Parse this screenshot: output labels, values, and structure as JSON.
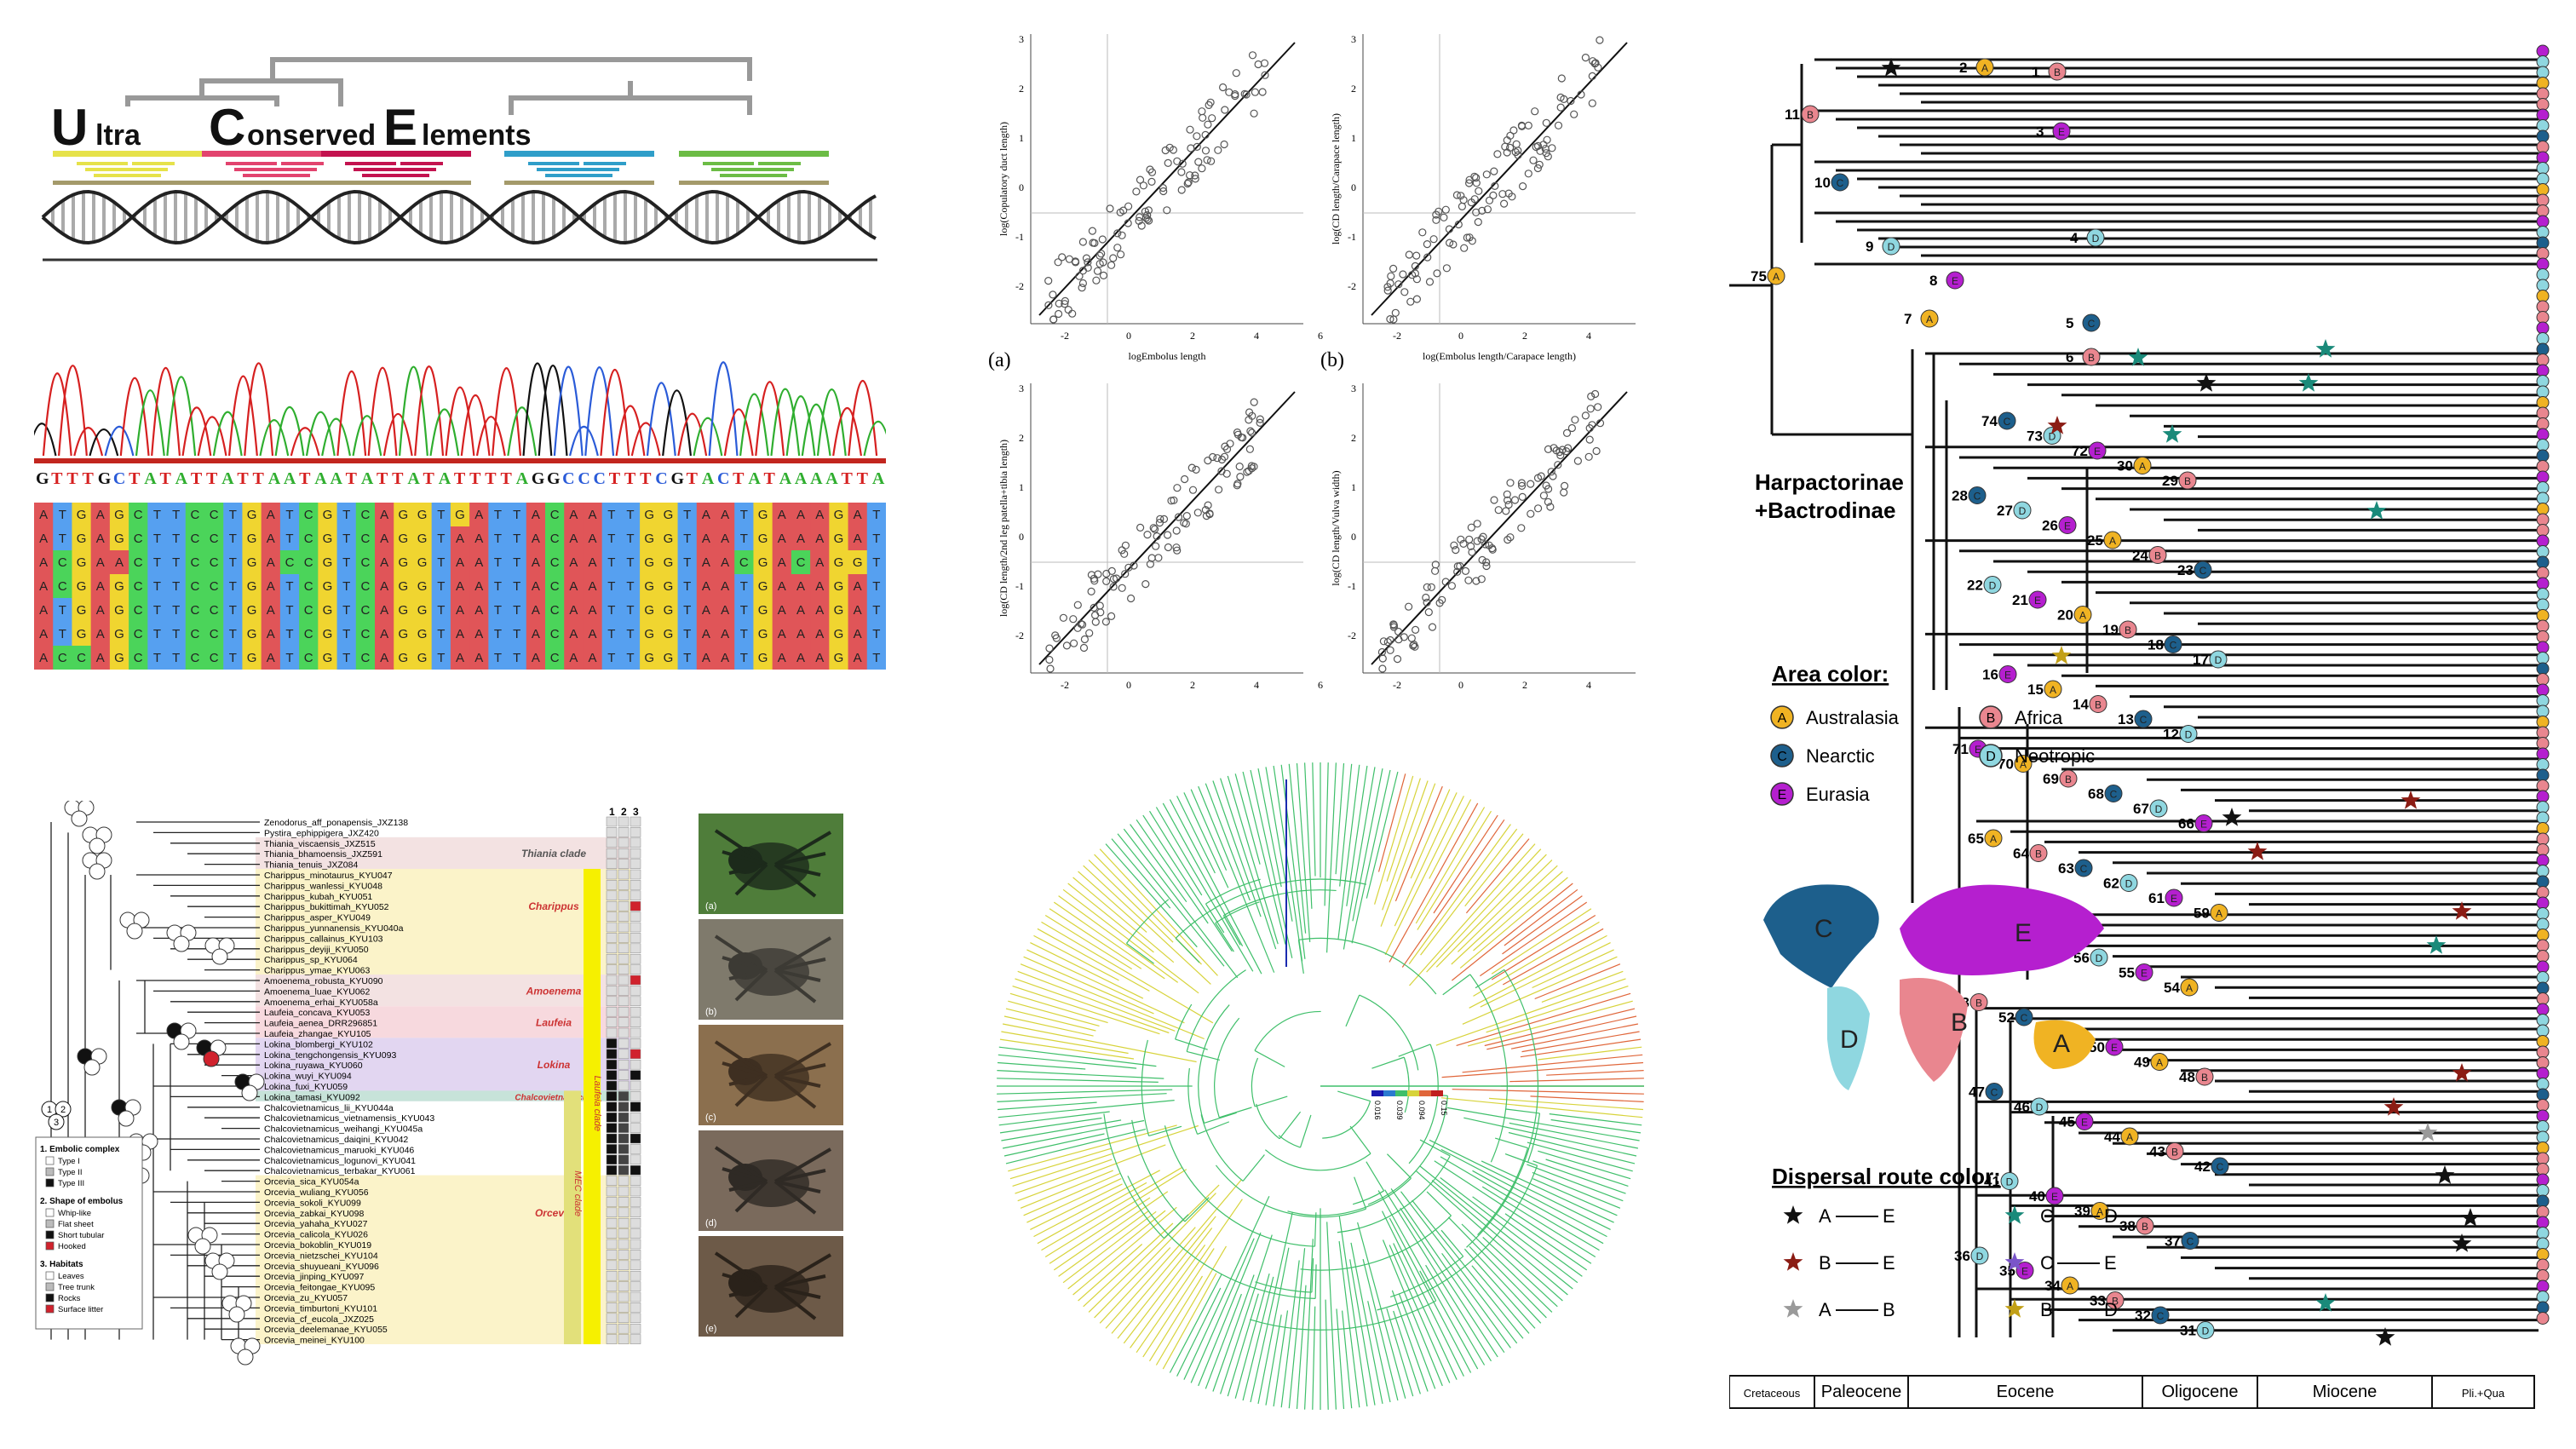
{
  "uce": {
    "big_letters": [
      "U",
      "C",
      "E"
    ],
    "small_words": [
      "ltra",
      "onserved",
      "lements"
    ],
    "colors": [
      "#e6e24a",
      "#e2436e",
      "#c3134f",
      "#2f9ec9",
      "#6cbc45"
    ]
  },
  "chromatogram": {
    "reference": "GTTTGCTATATTATTAATAATATTATATTTTAGGCCCTTTCGTACTATAAAATTA",
    "alignment": [
      "ATGAGCTTCCTGATCGTCAGGTGATTACAATTGGTAATGAAAGAT",
      "ATGAGCTTCCTGATCGTCAGGTAATTACAATTGGTAATGAAAGAT",
      "ACGAACTTCCTGACCGTCAGGTAATTACAATTGGTAACGACAGGT",
      "ACGAGCTTCCTGATCGTCAGGTAATTACAATTGGTAATGAAAGAT",
      "ATGAGCTTCCTGATCGTCAGGTAATTACAATTGGTAATGAAAGAT",
      "ATGAGCTTCCTGATCGTCAGGTAATTACAATTGGTAATGAAAGAT",
      "ACCAGCTTCCTGATCGTCAGGTAATTACAATTGGTAATGAAAGAT"
    ],
    "base_colors": {
      "A": "#e05558",
      "T": "#56a0f0",
      "G": "#f0d530",
      "C": "#4bd45a"
    }
  },
  "scatter": {
    "plots": [
      {
        "letter": "(a)",
        "xlabel": "logEmbolus length",
        "ylabel": "log(Copulatory duct length)"
      },
      {
        "letter": "(b)",
        "xlabel": "log(Embolus length/Carapace length)",
        "ylabel": "log(CD length/Carapace length)"
      },
      {
        "letter": "(c)",
        "xlabel": "log(Embolus length/2nd leg patella+tibia length)",
        "ylabel": "log(CD length/2nd leg patella+tibia length)"
      },
      {
        "letter": "(d)",
        "xlabel": "log(Embolus length/Bulb width)",
        "ylabel": "log(CD length/Vulva width)"
      }
    ],
    "ticks_x": [
      "-2",
      "0",
      "2",
      "4",
      "6"
    ],
    "ticks_y": [
      "-2",
      "-1",
      "0",
      "1",
      "2",
      "3"
    ]
  },
  "phylo": {
    "taxa": [
      "Zenodorus_aff_ponapensis_JXZ138",
      "Pystira_ephippigera_JXZ420",
      "Thiania_viscaensis_JXZ515",
      "Thiania_bhamoensis_JXZ591",
      "Thiania_tenuis_JXZ084",
      "Charippus_minotaurus_KYU047",
      "Charippus_wanlessi_KYU048",
      "Charippus_kubah_KYU051",
      "Charippus_bukittimah_KYU052",
      "Charippus_asper_KYU049",
      "Charippus_yunnanensis_KYU040a",
      "Charippus_callainus_KYU103",
      "Charippus_deyiji_KYU050",
      "Charippus_sp_KYU064",
      "Charippus_ymae_KYU063",
      "Amoenema_robusta_KYU090",
      "Amoenema_luae_KYU062",
      "Amoenema_erhai_KYU058a",
      "Laufeia_concava_KYU053",
      "Laufeia_aenea_DRR296851",
      "Laufeia_zhangae_KYU105",
      "Lokina_blombergi_KYU102",
      "Lokina_tengchongensis_KYU093",
      "Lokina_ruyawa_KYU060",
      "Lokina_wuyi_KYU094",
      "Lokina_fuxi_KYU059",
      "Lokina_tamasi_KYU092",
      "Chalcovietnamicus_lii_KYU044a",
      "Chalcovietnamicus_vietnamensis_KYU043",
      "Chalcovietnamicus_weihangi_KYU045a",
      "Chalcovietnamicus_daiqini_KYU042",
      "Chalcovietnamicus_maruoki_KYU046",
      "Chalcovietnamicus_logunovi_KYU041",
      "Chalcovietnamicus_terbakar_KYU061",
      "Orcevia_sica_KYU054a",
      "Orcevia_wuliang_KYU056",
      "Orcevia_sokoli_KYU099",
      "Orcevia_zabkai_KYU098",
      "Orcevia_yahaha_KYU027",
      "Orcevia_calicola_KYU026",
      "Orcevia_bokoblin_KYU019",
      "Orcevia_nietzschei_KYU104",
      "Orcevia_shuyueani_KYU096",
      "Orcevia_jinping_KYU097",
      "Orcevia_feitongae_KYU095",
      "Orcevia_zu_KYU057",
      "Orcevia_timburtoni_KYU101",
      "Orcevia_cf_eucola_JXZ025",
      "Orcevia_deelemanae_KYU055",
      "Orcevia_meinei_KYU100"
    ],
    "clades": [
      "Thiania clade",
      "Charippus",
      "Amoenema",
      "Laufeia",
      "Lokina",
      "Chalcovietnamicus",
      "Orcevia"
    ],
    "side_labels": [
      "Laufeia clade",
      "MEC clade"
    ],
    "col_headers": [
      "1",
      "2",
      "3"
    ],
    "photo_labels": [
      "(a)",
      "(b)",
      "(c)",
      "(d)",
      "(e)"
    ],
    "legend": {
      "circle_nums": [
        "1",
        "2",
        "3"
      ],
      "g1_title": "1. Embolic complex",
      "g1": [
        "Type I",
        "Type II",
        "Type III"
      ],
      "g2_title": "2. Shape of embolus",
      "g2": [
        "Whip-like",
        "Flat sheet",
        "Short tubular",
        "Hooked"
      ],
      "g3_title": "3. Habitats",
      "g3": [
        "Leaves",
        "Tree trunk",
        "Rocks",
        "Surface litter"
      ]
    }
  },
  "circular": {
    "scale_labels": [
      "0.016",
      "0.039",
      "0.094",
      "0.15"
    ]
  },
  "right": {
    "group_title": [
      "Harpactorinae",
      "+Bactrodinae"
    ],
    "area_title": "Area color:",
    "areas": [
      {
        "letter": "A",
        "name": "Australasia",
        "color": "#f0b323"
      },
      {
        "letter": "B",
        "name": "Africa",
        "color": "#e9868f"
      },
      {
        "letter": "C",
        "name": "Nearctic",
        "color": "#1d5f8c"
      },
      {
        "letter": "D",
        "name": "Neotropic",
        "color": "#8fd7e0"
      },
      {
        "letter": "E",
        "name": "Eurasia",
        "color": "#b51fcf"
      }
    ],
    "map_letters": [
      "C",
      "E",
      "B",
      "D",
      "A"
    ],
    "dispersal_title": "Dispersal route color:",
    "routes": [
      {
        "from": "A",
        "to": "E",
        "color": "#111111"
      },
      {
        "from": "C",
        "to": "D",
        "color": "#1a8a7a"
      },
      {
        "from": "B",
        "to": "E",
        "color": "#8b1c14"
      },
      {
        "from": "C",
        "to": "E",
        "color": "#7a55c9"
      },
      {
        "from": "A",
        "to": "B",
        "color": "#9a9a9a"
      },
      {
        "from": "B",
        "to": "D",
        "color": "#c2a017"
      }
    ],
    "node_numbers": [
      "75",
      "11",
      "10",
      "9",
      "8",
      "7",
      "6",
      "5",
      "4",
      "3",
      "2",
      "1",
      "74",
      "73",
      "72",
      "30",
      "29",
      "28",
      "27",
      "26",
      "25",
      "24",
      "23",
      "22",
      "21",
      "20",
      "19",
      "18",
      "17",
      "16",
      "15",
      "14",
      "13",
      "12",
      "71",
      "70",
      "69",
      "68",
      "67",
      "66",
      "65",
      "64",
      "63",
      "62",
      "61",
      "59",
      "58",
      "57",
      "56",
      "55",
      "54",
      "53",
      "52",
      "51",
      "50",
      "49",
      "48",
      "47",
      "46",
      "45",
      "44",
      "43",
      "42",
      "41",
      "40",
      "39",
      "38",
      "37",
      "36",
      "35",
      "34",
      "33",
      "32",
      "31"
    ],
    "timescale": [
      "Cretaceous",
      "Paleocene",
      "Eocene",
      "Oligocene",
      "Miocene",
      "Pli.+Qua"
    ]
  }
}
